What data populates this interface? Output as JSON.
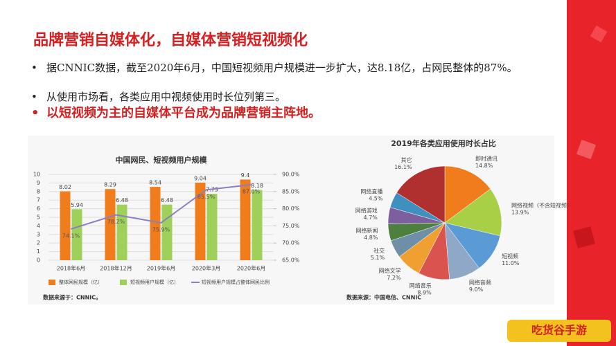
{
  "slide": {
    "title": "品牌营销自媒体化，自媒体营销短视频化",
    "bullets": [
      "据CNNIC数据，截至2020年6月，中国短视频用户规模进一步扩大，达8.18亿，占网民整体的87%。",
      "从使用市场看，各类应用中视频使用时长位列第三。",
      "以短视频为主的自媒体平台成为品牌营销主阵地。"
    ],
    "watermark": "吃货谷手游"
  },
  "chart_data": [
    {
      "type": "bar",
      "title": "中国网民、短视频用户规模",
      "categories": [
        "2018年6月",
        "2018年12月",
        "2019年6月",
        "2020年3月",
        "2020年6月"
      ],
      "series": [
        {
          "name": "整体网民规模（亿）",
          "color": "#f07c1c",
          "values": [
            8.02,
            8.29,
            8.54,
            9.04,
            9.4
          ]
        },
        {
          "name": "短视频用户规模（亿）",
          "color": "#9fd05a",
          "values": [
            5.94,
            6.48,
            6.48,
            7.73,
            8.18
          ]
        },
        {
          "name": "短视频用户规模占整体网民比例",
          "color": "#8a7fc0",
          "type": "line",
          "axis": "y2",
          "values": [
            74.1,
            78.2,
            75.9,
            85.5,
            87.0
          ],
          "value_labels": [
            "74.1%",
            "78.2%",
            "75.9%",
            "85.5%",
            "87.0%"
          ]
        }
      ],
      "ylim": [
        0,
        10
      ],
      "yticks": [
        0,
        1,
        2,
        3,
        4,
        5,
        6,
        7,
        8,
        9,
        10
      ],
      "y2lim": [
        65,
        90
      ],
      "y2ticks": [
        {
          "value": 65,
          "label": "65.0%"
        },
        {
          "value": 70,
          "label": "70.0%"
        },
        {
          "value": 75,
          "label": "75.0%"
        },
        {
          "value": 80,
          "label": "80.0%"
        },
        {
          "value": 85,
          "label": "85.0%"
        },
        {
          "value": 90,
          "label": "90.0%"
        }
      ],
      "grid": true,
      "source": "数据来源于：CNNIC。"
    },
    {
      "type": "pie",
      "title": "2019年各类应用使用时长占比",
      "categories": [
        "即时通讯",
        "网络视频（不含短视频）",
        "短视频",
        "网络音频",
        "网络音乐",
        "网络文学",
        "社交",
        "网络新闻",
        "网络游戏",
        "网络直播",
        "其它"
      ],
      "values": [
        14.8,
        13.9,
        11.0,
        9.0,
        8.9,
        7.2,
        5.1,
        4.8,
        4.7,
        4.5,
        16.1
      ],
      "value_labels": [
        "14.8%",
        "13.9%",
        "11.0%",
        "9.0%",
        "8.9%",
        "7.2%",
        "5.1%",
        "4.8%",
        "4.7%",
        "4.5%",
        "16.1%"
      ],
      "colors": [
        "#f07c1c",
        "#a8cf45",
        "#5b9bd5",
        "#8fa8c8",
        "#d9534f",
        "#f0a030",
        "#6f8fa8",
        "#4f7f3f",
        "#7d5fa0",
        "#3f8fbf",
        "#b03030"
      ],
      "source": "数据来源：中国电信、CNNIC"
    }
  ]
}
